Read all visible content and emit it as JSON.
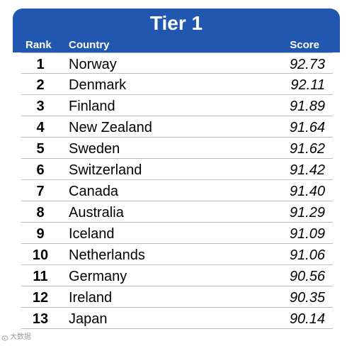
{
  "header": {
    "title": "Tier 1",
    "col_rank": "Rank",
    "col_country": "Country",
    "col_score": "Score"
  },
  "rows": [
    {
      "rank": "1",
      "country": "Norway",
      "score": "92.73"
    },
    {
      "rank": "2",
      "country": "Denmark",
      "score": "92.11"
    },
    {
      "rank": "3",
      "country": "Finland",
      "score": "91.89"
    },
    {
      "rank": "4",
      "country": "New Zealand",
      "score": "91.64"
    },
    {
      "rank": "5",
      "country": "Sweden",
      "score": "91.62"
    },
    {
      "rank": "6",
      "country": "Switzerland",
      "score": "91.42"
    },
    {
      "rank": "7",
      "country": "Canada",
      "score": "91.40"
    },
    {
      "rank": "8",
      "country": "Australia",
      "score": "91.29"
    },
    {
      "rank": "9",
      "country": "Iceland",
      "score": "91.09"
    },
    {
      "rank": "10",
      "country": "Netherlands",
      "score": "91.06"
    },
    {
      "rank": "11",
      "country": "Germany",
      "score": "90.56"
    },
    {
      "rank": "12",
      "country": "Ireland",
      "score": "90.35"
    },
    {
      "rank": "13",
      "country": "Japan",
      "score": "90.14"
    }
  ],
  "watermark": {
    "text": "大数据",
    "icon": "weibo-logo-icon"
  },
  "colors": {
    "header_bg": "#2257b0",
    "header_text": "#ffffff",
    "divider": "#bfbfbf"
  }
}
